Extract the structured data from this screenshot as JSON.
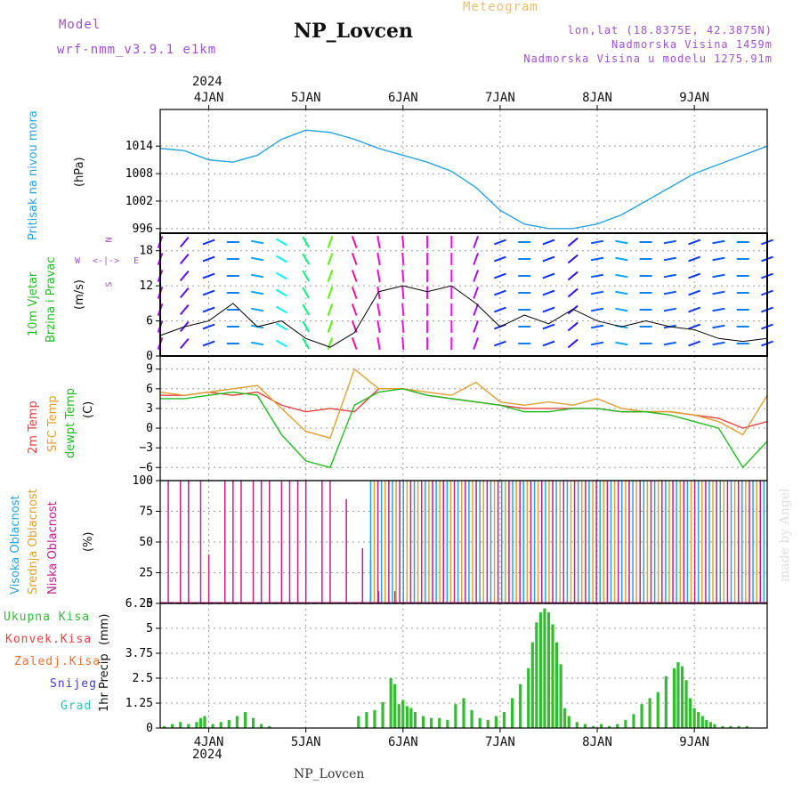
{
  "header": {
    "model_label": "Model",
    "model_name": "wrf-nmm_v3.9.1 e1km",
    "station": "NP_Lovcen",
    "meteogram": "Meteogram",
    "lonlat": "lon,lat (18.8375E, 42.3875N)",
    "elevation": "Nadmorska Visina 1459m",
    "model_elevation": "Nadmorska Visina u modelu 1275.91m",
    "year_top": "2024",
    "year_bottom": "2024",
    "footer_station": "NP_Lovcen",
    "watermark": "made by Angel"
  },
  "colors": {
    "pressure": "#29a3e0",
    "wind_label": "#22bb22",
    "t2m": "#e64040",
    "sfc": "#e0a030",
    "dew": "#22bb22",
    "cloud_high": "#29a3e0",
    "cloud_mid": "#e0a030",
    "cloud_low": "#c0208a",
    "precip_total": "#33bb33",
    "precip_conv": "#e64040",
    "precip_frozen": "#f07030",
    "precip_snow": "#4040d0",
    "precip_hail": "#30c0c0",
    "header_purple": "#a050d0",
    "header_gold": "#e8c070"
  },
  "chart_data": [
    {
      "id": "pressure",
      "type": "line",
      "ylabel": "Pritisak na nivou mora",
      "unit": "(hPa)",
      "yticks": [
        1014,
        1008,
        1002,
        996
      ],
      "ylim": [
        995,
        1022
      ],
      "x": [
        0,
        6,
        12,
        18,
        24,
        30,
        36,
        42,
        48,
        54,
        60,
        66,
        72,
        78,
        84,
        90,
        96,
        102,
        108,
        114,
        120,
        126,
        132,
        138,
        144,
        150
      ],
      "y": [
        1013.5,
        1013,
        1011,
        1010.5,
        1012,
        1015.5,
        1017.5,
        1017,
        1015.5,
        1013.5,
        1012,
        1010.5,
        1008.5,
        1005,
        1000,
        997,
        996,
        996,
        997,
        999,
        1002,
        1005,
        1008,
        1010,
        1012,
        1014
      ]
    },
    {
      "id": "wind",
      "type": "line",
      "ylabel": "10m Vjetar",
      "ylabel2": "Brzina i Pravac",
      "unit": "(m/s)",
      "yticks": [
        18,
        12,
        6,
        0
      ],
      "ylim": [
        0,
        21
      ],
      "compass": {
        "n": "N",
        "s": "S",
        "w": "W",
        "e": "E"
      },
      "x": [
        0,
        6,
        12,
        18,
        24,
        30,
        36,
        42,
        48,
        54,
        60,
        66,
        72,
        78,
        84,
        90,
        96,
        102,
        108,
        114,
        120,
        126,
        132,
        138,
        144,
        150
      ],
      "y": [
        3.5,
        5,
        6,
        9,
        5,
        6,
        3,
        1.5,
        4,
        11,
        12,
        11,
        12,
        9,
        5,
        7,
        5.5,
        8,
        6,
        5,
        6,
        5,
        4.5,
        3,
        2.5,
        3
      ],
      "wind_dir_deg": [
        200,
        220,
        250,
        270,
        280,
        300,
        330,
        20,
        160,
        170,
        175,
        180,
        180,
        200,
        250,
        270,
        250,
        230,
        260,
        280,
        270,
        260,
        250,
        260,
        270,
        250
      ]
    },
    {
      "id": "temperature",
      "type": "line",
      "labels": [
        "2m Temp",
        "SFC Temp",
        "dewpt Temp"
      ],
      "unit": "(C)",
      "yticks": [
        9,
        6,
        3,
        0,
        -3,
        -6
      ],
      "ylim": [
        -8,
        11
      ],
      "x": [
        0,
        6,
        12,
        18,
        24,
        30,
        36,
        42,
        48,
        54,
        60,
        66,
        72,
        78,
        84,
        90,
        96,
        102,
        108,
        114,
        120,
        126,
        132,
        138,
        144,
        150
      ],
      "series": [
        {
          "name": "2m Temp",
          "values": [
            5,
            5,
            5.5,
            5,
            5.5,
            3.5,
            2.5,
            3,
            2.5,
            6,
            6,
            5,
            4.5,
            4,
            3.5,
            3,
            3,
            3,
            3,
            2.5,
            2.5,
            2.5,
            2,
            1.5,
            0,
            1
          ]
        },
        {
          "name": "SFC Temp",
          "values": [
            5.5,
            5,
            5.5,
            6,
            6.5,
            3,
            -0.5,
            -1.5,
            9,
            6,
            6,
            5.5,
            5,
            7,
            4,
            3.5,
            4,
            3.5,
            4.5,
            3,
            2.5,
            2.5,
            2,
            1,
            -1,
            5
          ]
        },
        {
          "name": "dewpt Temp",
          "values": [
            4.5,
            4.5,
            5,
            5.5,
            5,
            -1,
            -5,
            -6,
            3.5,
            5.5,
            6,
            5,
            4.5,
            4,
            3.5,
            2.5,
            2.5,
            3,
            3,
            2.5,
            2.5,
            2,
            1,
            0,
            -6,
            -2
          ]
        }
      ]
    },
    {
      "id": "cloud",
      "type": "bar",
      "labels": [
        "Visoka Oblacnost",
        "Srednja Oblacnost",
        "Niska Oblacnost"
      ],
      "unit": "(%)",
      "yticks": [
        100,
        75,
        50,
        25,
        0
      ],
      "ylim": [
        0,
        100
      ],
      "low": {
        "x": [
          2,
          5,
          7,
          10,
          12,
          16,
          18,
          20,
          23,
          25,
          27,
          30,
          32,
          34,
          36,
          40,
          42,
          46,
          50,
          52,
          54,
          58
        ],
        "values": [
          100,
          100,
          100,
          100,
          40,
          100,
          100,
          100,
          100,
          100,
          100,
          100,
          100,
          100,
          100,
          100,
          100,
          85,
          45,
          35,
          10,
          10
        ]
      },
      "mid_high_start": 52,
      "mid_high_end": 150,
      "mid_high_value": 100
    },
    {
      "id": "precip",
      "type": "bar",
      "labels": [
        "Ukupna Kisa",
        "Konvek.Kisa",
        "Zaledj.Kisa",
        "Snijeg",
        "Grad"
      ],
      "ylabel": "1hr Precip",
      "unit": "(mm)",
      "yticks": [
        "6.25",
        "5",
        "3.75",
        "2.5",
        "1.25",
        "0"
      ],
      "ylim": [
        0,
        6.25
      ],
      "x": [
        1,
        3,
        5,
        7,
        9,
        10,
        11,
        13,
        15,
        17,
        19,
        21,
        23,
        25,
        27,
        49,
        51,
        53,
        55,
        57,
        58,
        59,
        60,
        61,
        62,
        63,
        65,
        67,
        69,
        71,
        73,
        75,
        77,
        79,
        81,
        83,
        85,
        87,
        89,
        91,
        92,
        93,
        94,
        95,
        96,
        97,
        98,
        99,
        100,
        101,
        103,
        105,
        107,
        109,
        111,
        113,
        115,
        117,
        119,
        121,
        123,
        125,
        127,
        128,
        129,
        130,
        131,
        132,
        133,
        134,
        135,
        136,
        137,
        139,
        141,
        143,
        145
      ],
      "values": [
        0.1,
        0.2,
        0.3,
        0.2,
        0.3,
        0.5,
        0.6,
        0.2,
        0.3,
        0.4,
        0.6,
        0.8,
        0.5,
        0.2,
        0.1,
        0.6,
        0.8,
        0.9,
        1.3,
        2.5,
        2.2,
        1.2,
        1.4,
        1.1,
        1.0,
        0.8,
        0.6,
        0.5,
        0.5,
        0.4,
        1.2,
        1.5,
        0.9,
        0.5,
        0.4,
        0.6,
        0.8,
        1.5,
        2.2,
        3.0,
        4.3,
        5.3,
        5.8,
        6.0,
        5.8,
        5.2,
        4.3,
        3.2,
        1.0,
        0.6,
        0.3,
        0.2,
        0.1,
        0.2,
        0.1,
        0.2,
        0.4,
        0.7,
        1.2,
        1.5,
        1.8,
        2.6,
        3.0,
        3.3,
        3.1,
        2.4,
        1.5,
        1.0,
        0.8,
        0.6,
        0.4,
        0.3,
        0.2,
        0.1,
        0.1,
        0.1,
        0.1
      ]
    }
  ],
  "x_axis": {
    "hours_total": 150,
    "labels": [
      {
        "text": "4JAN",
        "hour": 12
      },
      {
        "text": "5JAN",
        "hour": 36
      },
      {
        "text": "6JAN",
        "hour": 60
      },
      {
        "text": "7JAN",
        "hour": 84
      },
      {
        "text": "8JAN",
        "hour": 108
      },
      {
        "text": "9JAN",
        "hour": 132
      }
    ]
  }
}
